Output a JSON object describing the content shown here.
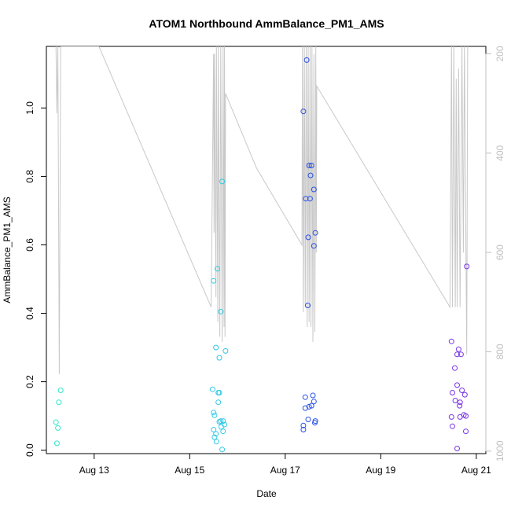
{
  "chart_data": {
    "type": "scatter",
    "title": "ATOM1 Northbound AmmBalance_PM1_AMS",
    "xlabel": "Date",
    "ylabel": "AmmBalance_PM1_AMS",
    "x_ticks": [
      "Aug 13",
      "Aug 15",
      "Aug 17",
      "Aug 19",
      "Aug 21"
    ],
    "x_tick_days": [
      13,
      15,
      17,
      19,
      21
    ],
    "xlim_days": [
      12.0,
      21.2
    ],
    "ylim": [
      -0.01,
      1.18
    ],
    "y_ticks": [
      0.0,
      0.2,
      0.4,
      0.6,
      0.8,
      1.0
    ],
    "y2_ticks": [
      200,
      400,
      600,
      800,
      1000
    ],
    "y2lim": [
      1005,
      185
    ],
    "secondary_color": "#c8c8c8",
    "grid": false,
    "series": [
      {
        "color": "#33e6c8",
        "points": [
          [
            12.2,
            0.082
          ],
          [
            12.22,
            0.02
          ],
          [
            12.24,
            0.065
          ],
          [
            12.26,
            0.14
          ],
          [
            12.3,
            0.175
          ]
        ]
      },
      {
        "color": "#33c8e6",
        "points": [
          [
            15.5,
            0.495
          ],
          [
            15.58,
            0.53
          ],
          [
            15.65,
            0.405
          ],
          [
            15.68,
            0.785
          ],
          [
            15.55,
            0.3
          ],
          [
            15.75,
            0.29
          ],
          [
            15.62,
            0.27
          ],
          [
            15.48,
            0.178
          ],
          [
            15.6,
            0.168
          ],
          [
            15.62,
            0.168
          ],
          [
            15.6,
            0.14
          ],
          [
            15.5,
            0.11
          ],
          [
            15.52,
            0.102
          ],
          [
            15.65,
            0.085
          ],
          [
            15.7,
            0.085
          ],
          [
            15.62,
            0.083
          ],
          [
            15.73,
            0.075
          ],
          [
            15.66,
            0.068
          ],
          [
            15.5,
            0.06
          ],
          [
            15.55,
            0.048
          ],
          [
            15.52,
            0.038
          ],
          [
            15.56,
            0.025
          ],
          [
            15.7,
            0.055
          ],
          [
            15.68,
            0.002
          ]
        ]
      },
      {
        "color": "#2850e6",
        "points": [
          [
            17.38,
            0.99
          ],
          [
            17.45,
            1.14
          ],
          [
            17.5,
            0.832
          ],
          [
            17.55,
            0.832
          ],
          [
            17.53,
            0.803
          ],
          [
            17.6,
            0.762
          ],
          [
            17.43,
            0.735
          ],
          [
            17.52,
            0.735
          ],
          [
            17.63,
            0.635
          ],
          [
            17.48,
            0.622
          ],
          [
            17.6,
            0.597
          ],
          [
            17.47,
            0.423
          ],
          [
            17.42,
            0.155
          ],
          [
            17.58,
            0.16
          ],
          [
            17.6,
            0.142
          ],
          [
            17.55,
            0.13
          ],
          [
            17.5,
            0.127
          ],
          [
            17.42,
            0.123
          ],
          [
            17.48,
            0.09
          ],
          [
            17.63,
            0.085
          ],
          [
            17.62,
            0.08
          ],
          [
            17.38,
            0.072
          ],
          [
            17.38,
            0.06
          ]
        ]
      },
      {
        "color": "#7832e6",
        "points": [
          [
            20.48,
            0.318
          ],
          [
            20.63,
            0.295
          ],
          [
            20.68,
            0.28
          ],
          [
            20.6,
            0.28
          ],
          [
            20.55,
            0.24
          ],
          [
            20.8,
            0.537
          ],
          [
            20.6,
            0.19
          ],
          [
            20.7,
            0.175
          ],
          [
            20.5,
            0.168
          ],
          [
            20.76,
            0.162
          ],
          [
            20.56,
            0.145
          ],
          [
            20.66,
            0.14
          ],
          [
            20.65,
            0.13
          ],
          [
            20.74,
            0.103
          ],
          [
            20.78,
            0.1
          ],
          [
            20.48,
            0.097
          ],
          [
            20.66,
            0.097
          ],
          [
            20.5,
            0.07
          ],
          [
            20.78,
            0.055
          ],
          [
            20.6,
            0.005
          ]
        ]
      }
    ],
    "secondary_line": [
      [
        12.2,
        185
      ],
      [
        12.22,
        320
      ],
      [
        12.24,
        185
      ],
      [
        12.27,
        845
      ],
      [
        12.3,
        185
      ],
      [
        12.32,
        185
      ],
      [
        13.1,
        185
      ],
      [
        15.45,
        710
      ],
      [
        15.5,
        200
      ],
      [
        15.51,
        560
      ],
      [
        15.52,
        200
      ],
      [
        15.55,
        690
      ],
      [
        15.56,
        185
      ],
      [
        15.59,
        740
      ],
      [
        15.6,
        185
      ],
      [
        15.63,
        770
      ],
      [
        15.65,
        185
      ],
      [
        15.68,
        780
      ],
      [
        15.7,
        185
      ],
      [
        15.72,
        750
      ],
      [
        15.73,
        185
      ],
      [
        15.74,
        770
      ],
      [
        15.75,
        280
      ],
      [
        16.4,
        430
      ],
      [
        17.35,
        585
      ],
      [
        17.36,
        185
      ],
      [
        17.38,
        720
      ],
      [
        17.4,
        185
      ],
      [
        17.42,
        710
      ],
      [
        17.44,
        185
      ],
      [
        17.46,
        750
      ],
      [
        17.48,
        185
      ],
      [
        17.5,
        740
      ],
      [
        17.52,
        185
      ],
      [
        17.54,
        750
      ],
      [
        17.56,
        185
      ],
      [
        17.58,
        780
      ],
      [
        17.6,
        200
      ],
      [
        17.62,
        760
      ],
      [
        17.64,
        185
      ],
      [
        17.65,
        600
      ],
      [
        17.66,
        265
      ],
      [
        20.45,
        710
      ],
      [
        20.48,
        185
      ],
      [
        20.5,
        710
      ],
      [
        20.53,
        185
      ],
      [
        20.56,
        710
      ],
      [
        20.58,
        250
      ],
      [
        20.6,
        710
      ],
      [
        20.63,
        230
      ],
      [
        20.66,
        710
      ],
      [
        20.7,
        185
      ],
      [
        20.73,
        600
      ],
      [
        20.75,
        185
      ],
      [
        20.8,
        805
      ],
      [
        20.82,
        185
      ]
    ]
  }
}
